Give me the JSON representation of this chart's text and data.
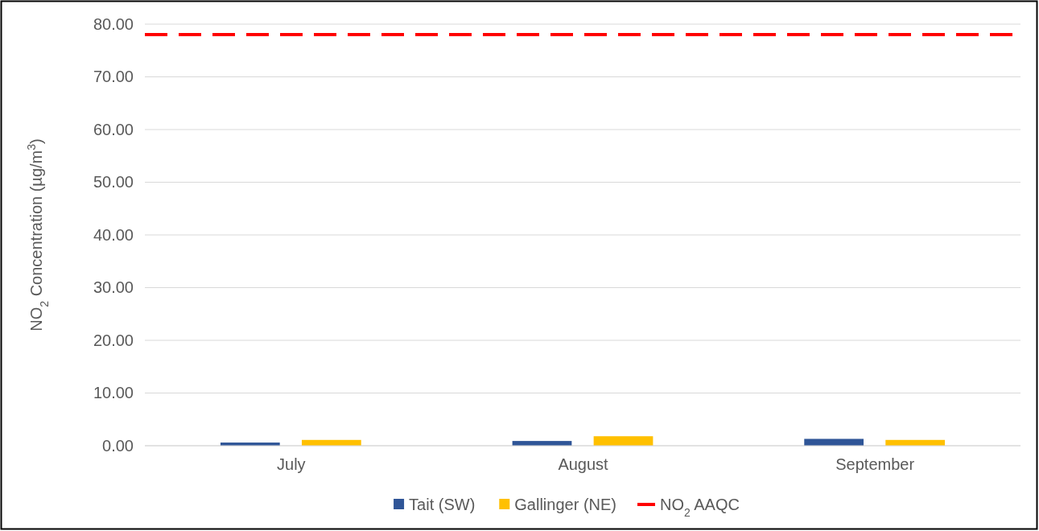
{
  "chart_data": {
    "type": "bar",
    "ylabel": "NO$_{2}$ Concentration (µg/m$^{3}$)",
    "categories": [
      "July",
      "August",
      "September"
    ],
    "series": [
      {
        "name": "Tait (SW)",
        "color": "#2f5597",
        "values": [
          0.6,
          0.9,
          1.3
        ]
      },
      {
        "name": "Gallinger (NE)",
        "color": "#ffc000",
        "values": [
          1.1,
          1.8,
          1.1
        ]
      }
    ],
    "ylim": [
      0,
      80
    ],
    "yticks": [
      {
        "value": 0,
        "label": "0.00"
      },
      {
        "value": 10,
        "label": "10.00"
      },
      {
        "value": 20,
        "label": "20.00"
      },
      {
        "value": 30,
        "label": "30.00"
      },
      {
        "value": 40,
        "label": "40.00"
      },
      {
        "value": 50,
        "label": "50.00"
      },
      {
        "value": 60,
        "label": "60.00"
      },
      {
        "value": 70,
        "label": "70.00"
      },
      {
        "value": 80,
        "label": "80.00"
      }
    ],
    "ref_lines": [
      {
        "axis": "y",
        "value": 78,
        "label": "NO$_{2}$ AAQC",
        "color": "#ff0000",
        "line_style": "dashed"
      }
    ],
    "grid": "y",
    "legend": "bottom"
  }
}
